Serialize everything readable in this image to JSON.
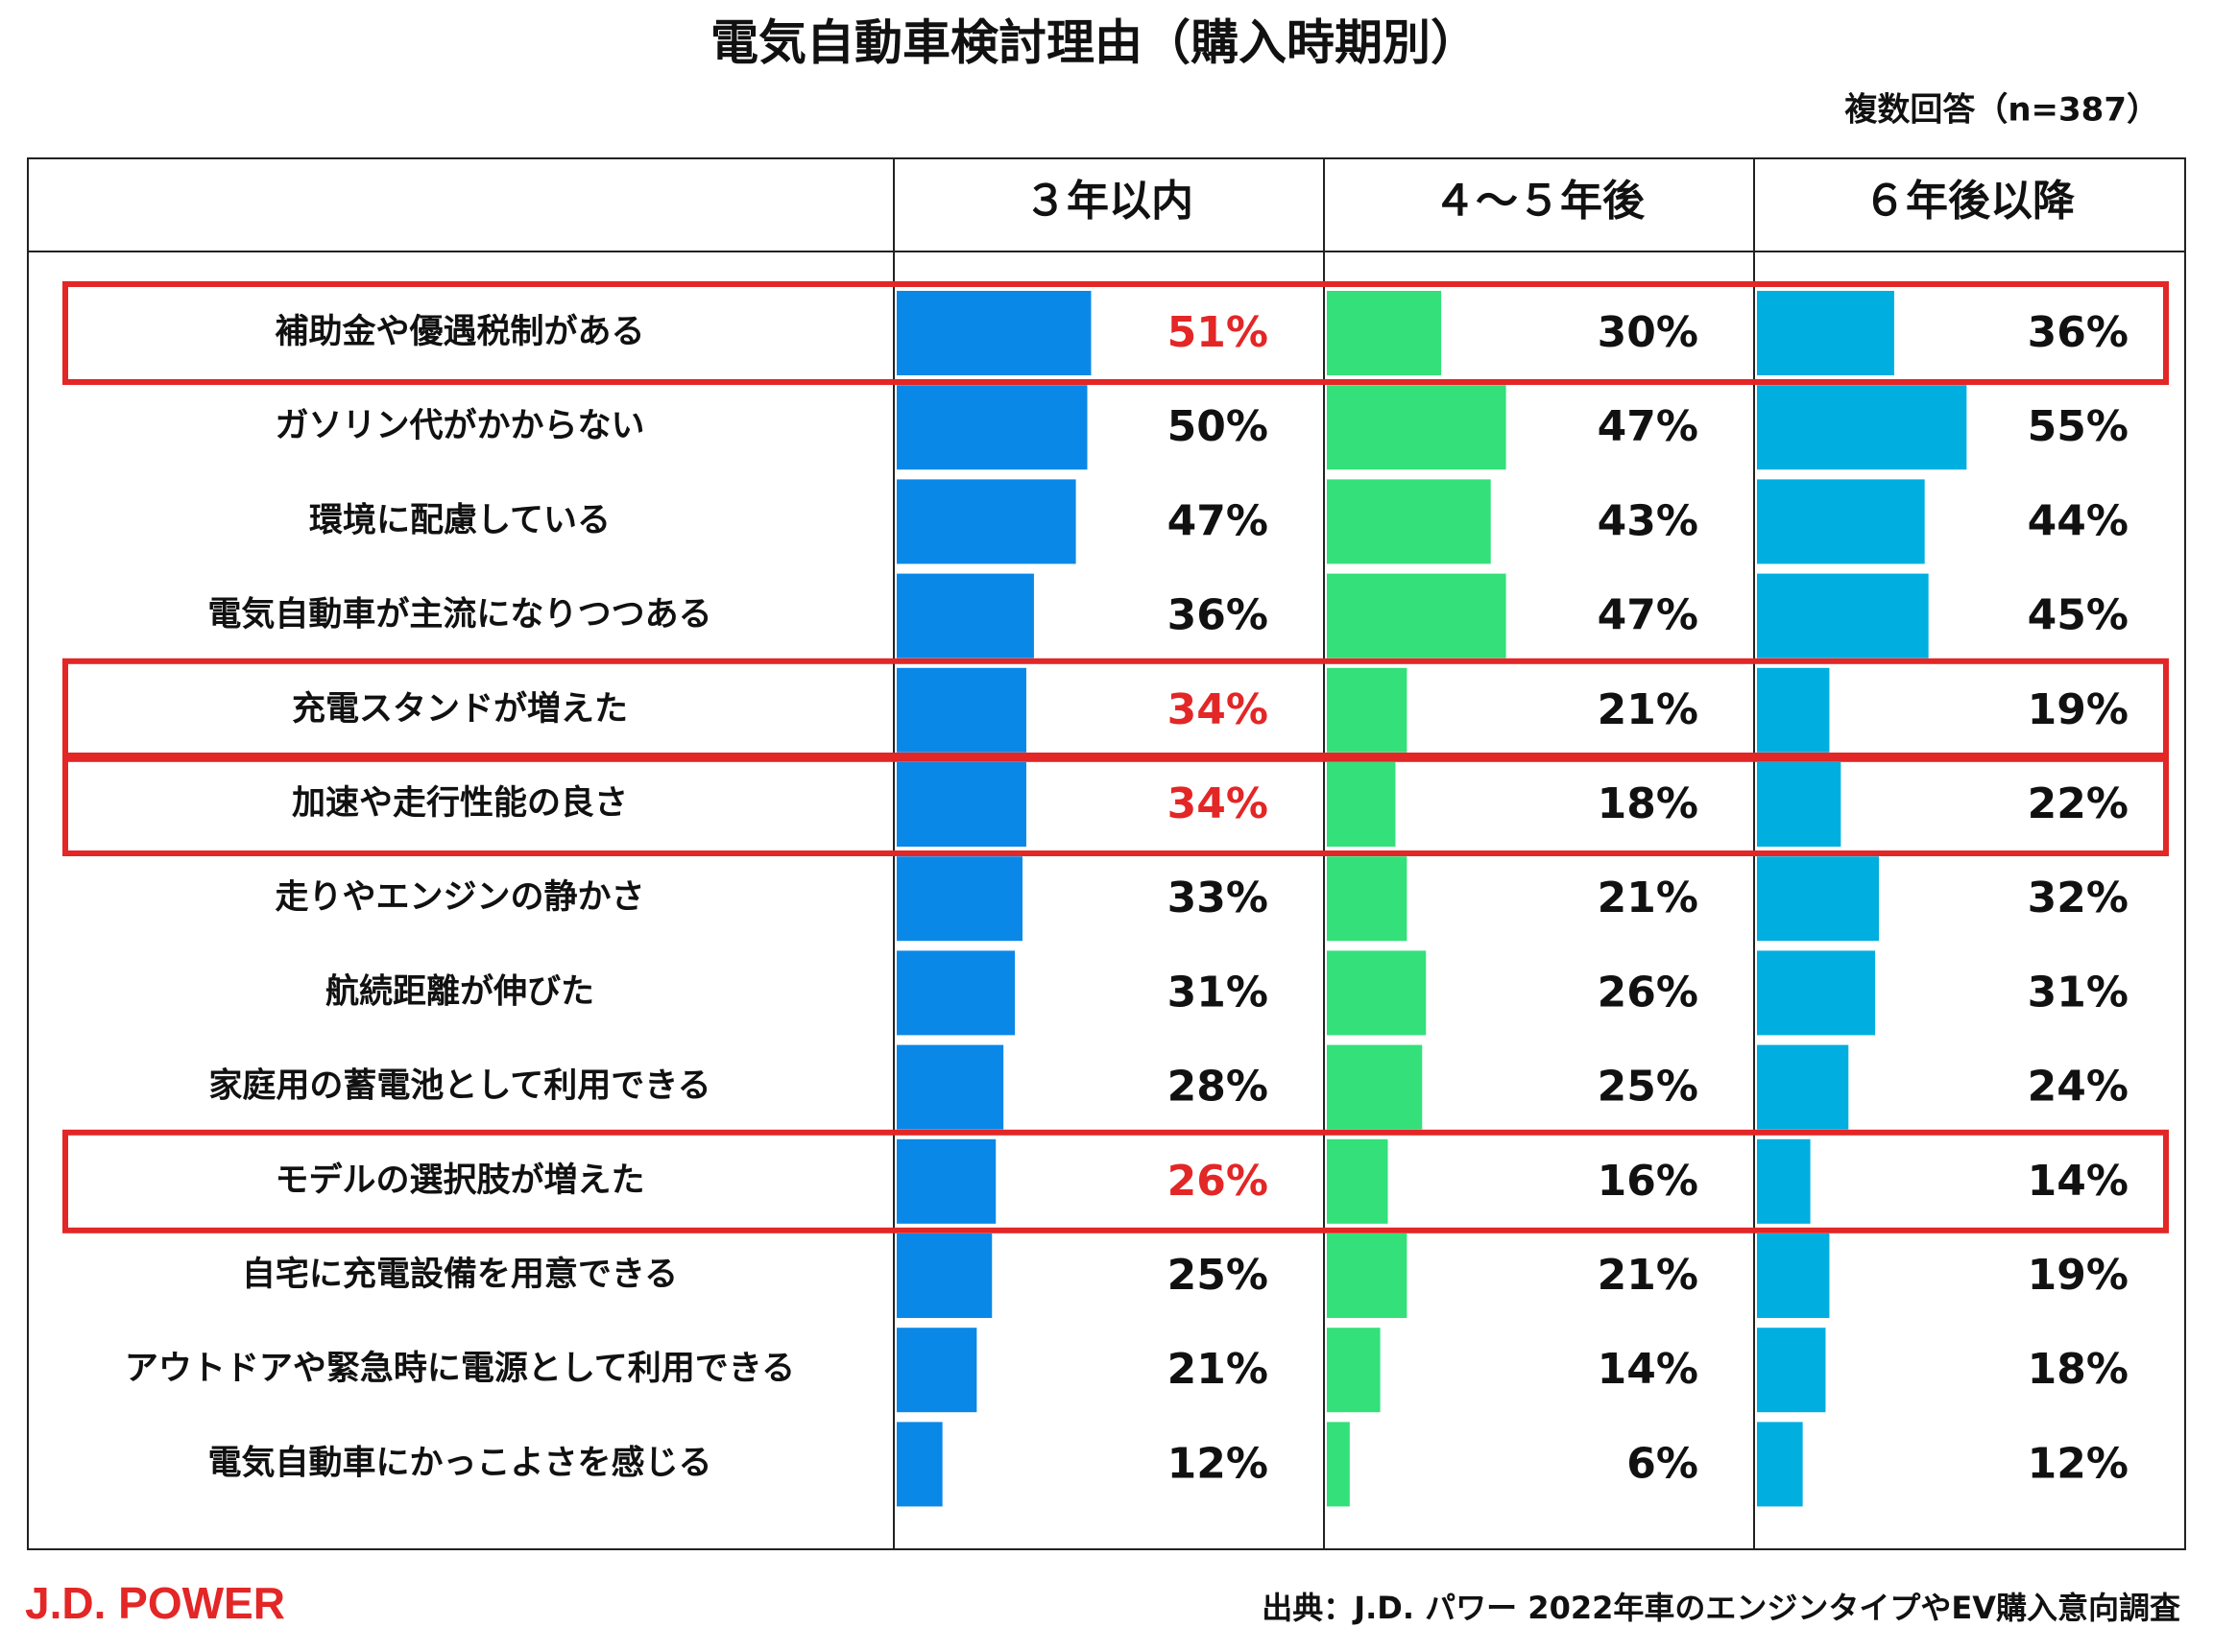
{
  "chart_data": {
    "type": "table-bar",
    "title": "電気自動車検討理由（購入時期別）",
    "subtitle": "複数回答（n=387）",
    "categories": [
      "補助金や優遇税制がある",
      "ガソリン代がかからない",
      "環境に配慮している",
      "電気自動車が主流になりつつある",
      "充電スタンドが増えた",
      "加速や走行性能の良さ",
      "走りやエンジンの静かさ",
      "航続距離が伸びた",
      "家庭用の蓄電池として利用できる",
      "モデルの選択肢が増えた",
      "自宅に充電設備を用意できる",
      "アウトドアや緊急時に電源として利用できる",
      "電気自動車にかっこよさを感じる"
    ],
    "series": [
      {
        "name": "３年以内",
        "color": "#0a88e8",
        "values": [
          51,
          50,
          47,
          36,
          34,
          34,
          33,
          31,
          28,
          26,
          25,
          21,
          12
        ],
        "value_labels": [
          "51%",
          "50%",
          "47%",
          "36%",
          "34%",
          "34%",
          "33%",
          "31%",
          "28%",
          "26%",
          "25%",
          "21%",
          "12%"
        ]
      },
      {
        "name": "４～５年後",
        "color": "#33e07a",
        "values": [
          30,
          47,
          43,
          47,
          21,
          18,
          21,
          26,
          25,
          16,
          21,
          14,
          6
        ],
        "value_labels": [
          "30%",
          "47%",
          "43%",
          "47%",
          "21%",
          "18%",
          "21%",
          "26%",
          "25%",
          "16%",
          "21%",
          "14%",
          "6%"
        ]
      },
      {
        "name": "６年後以降",
        "color": "#00aee0",
        "values": [
          36,
          55,
          44,
          45,
          19,
          22,
          32,
          31,
          24,
          14,
          19,
          18,
          12
        ],
        "value_labels": [
          "36%",
          "55%",
          "44%",
          "45%",
          "19%",
          "22%",
          "32%",
          "31%",
          "24%",
          "14%",
          "19%",
          "18%",
          "12%"
        ]
      }
    ],
    "highlight": {
      "rows": [
        0,
        4,
        5,
        9
      ],
      "series": 0,
      "color": "#e32626"
    },
    "brand": "J.D. POWER",
    "source": "出典：J.D. パワー 2022年車のエンジンタイプやEV購入意向調査"
  }
}
